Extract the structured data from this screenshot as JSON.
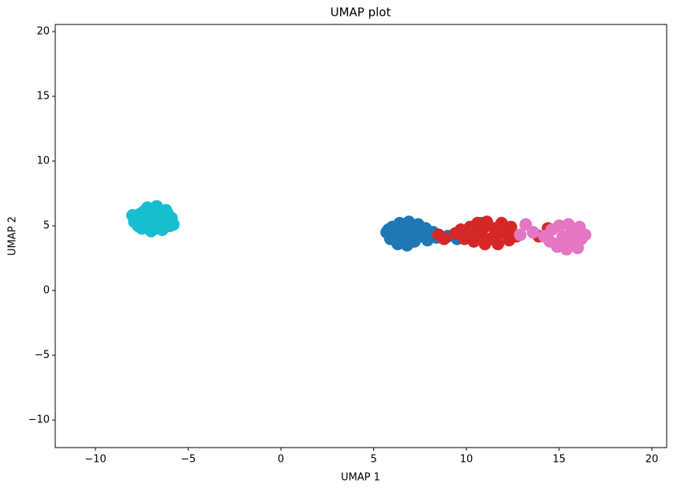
{
  "chart_data": {
    "type": "scatter",
    "title": "UMAP plot",
    "x_label": "UMAP 1",
    "y_label": "UMAP 2",
    "xlim": [
      -12.17,
      20.8
    ],
    "ylim": [
      -12.13,
      20.55
    ],
    "xticks": [
      {
        "value": -10,
        "label": "−10"
      },
      {
        "value": -5,
        "label": "−5"
      },
      0,
      5,
      10,
      15,
      20
    ],
    "yticks": [
      {
        "value": -10,
        "label": "−10"
      },
      {
        "value": -5,
        "label": "−5"
      },
      0,
      5,
      10,
      15,
      20
    ],
    "grid": false,
    "series": [
      {
        "color": "#17becf",
        "x": [
          -7.9,
          -7.6,
          -7.2,
          -6.7,
          -6.2,
          -5.9,
          -6.0,
          -6.4,
          -7.0,
          -7.5,
          -7.8,
          -7.3,
          -6.9,
          -6.5,
          -7.0,
          -6.6,
          -7.4,
          -6.1,
          -5.8,
          -7.7,
          -6.8,
          -6.3,
          -8.0,
          -7.1
        ],
        "y": [
          5.3,
          5.9,
          6.4,
          6.5,
          6.2,
          5.6,
          5.0,
          4.7,
          4.6,
          4.8,
          5.6,
          5.5,
          5.9,
          5.4,
          5.1,
          6.0,
          6.1,
          5.9,
          5.1,
          5.0,
          4.8,
          5.2,
          5.8,
          6.2
        ]
      },
      {
        "color": "#1f77b4",
        "x": [
          5.7,
          5.9,
          6.0,
          6.3,
          6.4,
          6.6,
          6.8,
          6.9,
          7.1,
          7.2,
          7.4,
          7.5,
          7.8,
          7.9,
          8.2,
          8.4,
          6.2,
          6.7,
          7.0,
          8.0,
          5.8,
          9.0,
          9.5,
          10.2,
          10.8
        ],
        "y": [
          4.5,
          4.0,
          4.9,
          3.6,
          5.2,
          4.3,
          3.5,
          5.3,
          4.7,
          3.8,
          5.1,
          4.2,
          4.8,
          3.9,
          4.5,
          4.1,
          4.4,
          4.8,
          4.1,
          4.3,
          4.7,
          4.2,
          4.0,
          4.3,
          5.2
        ]
      },
      {
        "color": "#d62728",
        "x": [
          8.5,
          8.8,
          9.4,
          9.7,
          9.9,
          10.2,
          10.4,
          10.6,
          10.8,
          11.0,
          11.1,
          11.3,
          11.5,
          11.7,
          11.9,
          12.1,
          12.3,
          12.4,
          12.7,
          10.9,
          11.6,
          10.5,
          13.9,
          14.4
        ],
        "y": [
          4.3,
          4.0,
          4.4,
          4.7,
          4.0,
          4.9,
          3.8,
          5.2,
          4.4,
          3.6,
          5.3,
          4.0,
          4.8,
          3.6,
          5.2,
          4.4,
          3.9,
          4.9,
          4.2,
          4.8,
          4.2,
          4.3,
          4.2,
          4.8
        ]
      },
      {
        "color": "#e377c2",
        "x": [
          14.2,
          14.5,
          14.6,
          14.9,
          15.0,
          15.2,
          15.4,
          15.5,
          15.7,
          15.8,
          16.1,
          16.2,
          16.4,
          15.1,
          15.6,
          13.2,
          13.6,
          12.9,
          16.0
        ],
        "y": [
          4.2,
          3.8,
          4.7,
          3.4,
          5.0,
          4.2,
          3.2,
          5.1,
          4.6,
          3.6,
          4.9,
          4.0,
          4.3,
          3.8,
          4.0,
          5.1,
          4.5,
          4.3,
          3.3
        ]
      }
    ]
  }
}
